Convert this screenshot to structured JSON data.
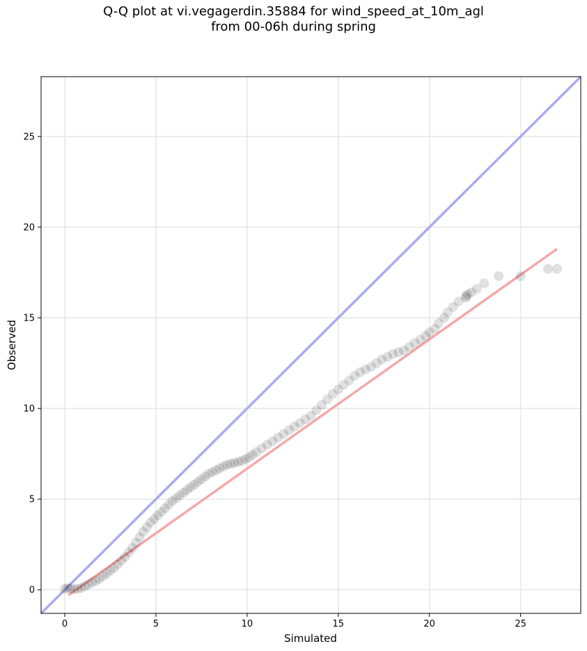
{
  "chart_data": {
    "type": "scatter",
    "title_line1": "Q-Q plot at vi.vegagerdin.35884 for wind_speed_at_10m_agl",
    "title_line2": "from 00-06h during spring",
    "xlabel": "Simulated",
    "ylabel": "Observed",
    "xlim": [
      -1.3,
      28.3
    ],
    "ylim": [
      -1.3,
      28.3
    ],
    "grid": true,
    "xticks": [
      0,
      5,
      10,
      15,
      20,
      25
    ],
    "yticks": [
      0,
      5,
      10,
      15,
      20,
      25
    ],
    "reference_line": {
      "name": "1:1",
      "color": "#aaaaf0",
      "from": [
        -1.3,
        -1.3
      ],
      "to": [
        28.3,
        28.3
      ]
    },
    "fit_line": {
      "color": "#f4a8a8",
      "from": [
        0.2,
        -0.3
      ],
      "to": [
        27.0,
        18.8
      ]
    },
    "point_color": "#000000",
    "series": [
      {
        "x": [
          0.0,
          0.15,
          0.3,
          0.5,
          0.7,
          0.9,
          1.1,
          1.3,
          1.5,
          1.7,
          1.9,
          2.1,
          2.3,
          2.5,
          2.7,
          2.9,
          3.1,
          3.3,
          3.5,
          3.7,
          3.9,
          4.1,
          4.3,
          4.5,
          4.7,
          4.9,
          5.1,
          5.3,
          5.5,
          5.7,
          5.9,
          6.1,
          6.3,
          6.5,
          6.7,
          6.9,
          7.1,
          7.3,
          7.5,
          7.7,
          7.9,
          8.1,
          8.3,
          8.5,
          8.7,
          8.9,
          9.1,
          9.3,
          9.5,
          9.7,
          9.9,
          10.1,
          10.3,
          10.5,
          10.8,
          11.1,
          11.4,
          11.7,
          12.0,
          12.3,
          12.6,
          12.9,
          13.2,
          13.5,
          13.8,
          14.1,
          14.4,
          14.7,
          15.0,
          15.3,
          15.6,
          15.9,
          16.2,
          16.5,
          16.8,
          17.1,
          17.4,
          17.7,
          18.0,
          18.3,
          18.6,
          18.9,
          19.2,
          19.5,
          19.8,
          20.0,
          20.3,
          20.5,
          20.8,
          21.0,
          21.3,
          21.6,
          22.0,
          22.0,
          22.1,
          22.3,
          22.6,
          23.0,
          23.8,
          25.0,
          26.5,
          27.0
        ],
        "y": [
          0.05,
          0.1,
          0.08,
          0.03,
          0.05,
          0.1,
          0.2,
          0.3,
          0.4,
          0.5,
          0.6,
          0.75,
          0.9,
          1.05,
          1.2,
          1.4,
          1.6,
          1.8,
          2.05,
          2.3,
          2.6,
          2.9,
          3.2,
          3.45,
          3.7,
          3.9,
          4.1,
          4.3,
          4.5,
          4.7,
          4.9,
          5.05,
          5.2,
          5.35,
          5.5,
          5.65,
          5.8,
          5.95,
          6.1,
          6.25,
          6.4,
          6.5,
          6.6,
          6.7,
          6.8,
          6.9,
          6.95,
          7.0,
          7.05,
          7.1,
          7.2,
          7.3,
          7.45,
          7.6,
          7.8,
          8.0,
          8.2,
          8.4,
          8.6,
          8.8,
          9.0,
          9.2,
          9.4,
          9.6,
          9.9,
          10.2,
          10.5,
          10.8,
          11.05,
          11.3,
          11.55,
          11.8,
          12.0,
          12.15,
          12.3,
          12.5,
          12.7,
          12.85,
          13.0,
          13.1,
          13.2,
          13.4,
          13.6,
          13.8,
          14.0,
          14.2,
          14.4,
          14.7,
          15.0,
          15.3,
          15.6,
          15.9,
          16.1,
          16.2,
          16.3,
          16.4,
          16.6,
          16.9,
          17.3,
          17.3,
          17.7,
          17.7
        ]
      }
    ]
  }
}
